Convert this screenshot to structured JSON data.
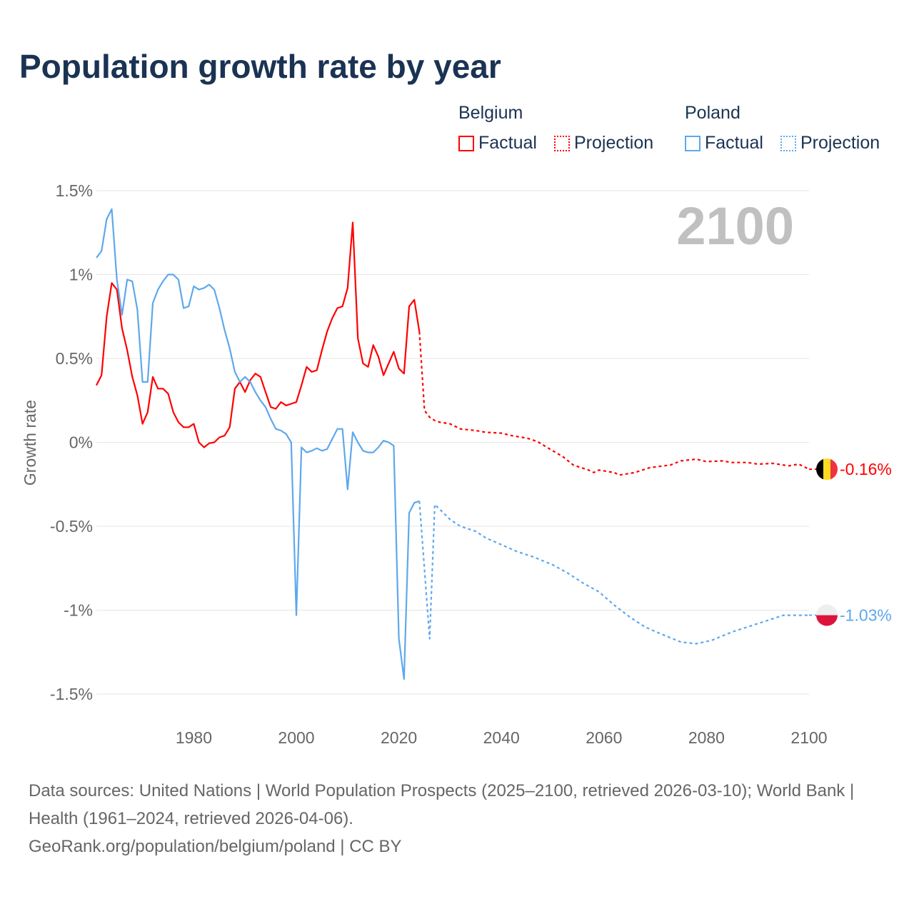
{
  "chart_data": {
    "type": "line",
    "title": "Population growth rate by year",
    "ylabel": "Growth rate",
    "xlabel": "",
    "xlim": [
      1961,
      2100
    ],
    "ylim": [
      -1.5,
      1.5
    ],
    "x_ticks": [
      "1980",
      "2000",
      "2020",
      "2040",
      "2060",
      "2080",
      "2100"
    ],
    "y_ticks": [
      "1.5%",
      "1%",
      "0.5%",
      "0%",
      "-0.5%",
      "-1%",
      "-1.5%"
    ],
    "year_watermark": "2100",
    "legend": {
      "groups": [
        {
          "name": "Belgium",
          "items": [
            "Factual",
            "Projection"
          ],
          "color": "#ff0000"
        },
        {
          "name": "Poland",
          "items": [
            "Factual",
            "Projection"
          ],
          "color": "#5ea8ec"
        }
      ]
    },
    "series": [
      {
        "name": "Belgium Factual",
        "color": "#ff0000",
        "style": "solid",
        "x": [
          1961,
          1962,
          1963,
          1964,
          1965,
          1966,
          1967,
          1968,
          1969,
          1970,
          1971,
          1972,
          1973,
          1974,
          1975,
          1976,
          1977,
          1978,
          1979,
          1980,
          1981,
          1982,
          1983,
          1984,
          1985,
          1986,
          1987,
          1988,
          1989,
          1990,
          1991,
          1992,
          1993,
          1994,
          1995,
          1996,
          1997,
          1998,
          1999,
          2000,
          2001,
          2002,
          2003,
          2004,
          2005,
          2006,
          2007,
          2008,
          2009,
          2010,
          2011,
          2012,
          2013,
          2014,
          2015,
          2016,
          2017,
          2018,
          2019,
          2020,
          2021,
          2022,
          2023,
          2024
        ],
        "y": [
          0.34,
          0.4,
          0.75,
          0.95,
          0.91,
          0.68,
          0.55,
          0.39,
          0.28,
          0.11,
          0.18,
          0.39,
          0.32,
          0.32,
          0.29,
          0.18,
          0.12,
          0.09,
          0.09,
          0.11,
          0.0,
          -0.03,
          -0.005,
          0.0,
          0.03,
          0.04,
          0.09,
          0.32,
          0.36,
          0.3,
          0.37,
          0.41,
          0.39,
          0.3,
          0.21,
          0.2,
          0.24,
          0.22,
          0.23,
          0.24,
          0.34,
          0.45,
          0.42,
          0.43,
          0.55,
          0.66,
          0.74,
          0.8,
          0.81,
          0.92,
          1.31,
          0.62,
          0.47,
          0.45,
          0.58,
          0.51,
          0.4,
          0.47,
          0.54,
          0.44,
          0.41,
          0.81,
          0.85,
          0.66
        ]
      },
      {
        "name": "Belgium Projection",
        "color": "#ff0000",
        "style": "dotted",
        "x": [
          2024,
          2025,
          2026,
          2027,
          2028,
          2030,
          2032,
          2035,
          2037,
          2040,
          2042,
          2045,
          2047,
          2050,
          2052,
          2054,
          2057,
          2058,
          2059,
          2062,
          2063,
          2066,
          2069,
          2073,
          2075,
          2078,
          2080,
          2083,
          2085,
          2088,
          2090,
          2093,
          2096,
          2098,
          2100
        ],
        "y": [
          0.66,
          0.19,
          0.15,
          0.13,
          0.12,
          0.11,
          0.08,
          0.07,
          0.06,
          0.055,
          0.04,
          0.025,
          0.005,
          -0.05,
          -0.085,
          -0.135,
          -0.165,
          -0.18,
          -0.165,
          -0.18,
          -0.195,
          -0.18,
          -0.15,
          -0.135,
          -0.11,
          -0.1,
          -0.115,
          -0.11,
          -0.12,
          -0.12,
          -0.13,
          -0.125,
          -0.14,
          -0.13,
          -0.16
        ]
      },
      {
        "name": "Poland Factual",
        "color": "#5ea8ec",
        "style": "solid",
        "x": [
          1961,
          1962,
          1963,
          1964,
          1965,
          1966,
          1967,
          1968,
          1969,
          1970,
          1971,
          1972,
          1973,
          1974,
          1975,
          1976,
          1977,
          1978,
          1979,
          1980,
          1981,
          1982,
          1983,
          1984,
          1985,
          1986,
          1987,
          1988,
          1989,
          1990,
          1991,
          1992,
          1993,
          1994,
          1995,
          1996,
          1997,
          1998,
          1999,
          2000,
          2001,
          2002,
          2003,
          2004,
          2005,
          2006,
          2007,
          2008,
          2009,
          2010,
          2011,
          2012,
          2013,
          2014,
          2015,
          2016,
          2017,
          2018,
          2019,
          2020,
          2021,
          2022,
          2023,
          2024
        ],
        "y": [
          1.1,
          1.14,
          1.33,
          1.39,
          0.97,
          0.76,
          0.97,
          0.96,
          0.79,
          0.36,
          0.36,
          0.83,
          0.91,
          0.96,
          1.0,
          1.0,
          0.97,
          0.8,
          0.81,
          0.93,
          0.91,
          0.92,
          0.94,
          0.91,
          0.8,
          0.67,
          0.56,
          0.42,
          0.36,
          0.39,
          0.36,
          0.3,
          0.25,
          0.21,
          0.14,
          0.08,
          0.07,
          0.05,
          0.0,
          -1.03,
          -0.03,
          -0.06,
          -0.05,
          -0.035,
          -0.05,
          -0.04,
          0.02,
          0.08,
          0.08,
          -0.28,
          0.06,
          0.0,
          -0.05,
          -0.06,
          -0.06,
          -0.03,
          0.01,
          0.0,
          -0.02,
          -1.17,
          -1.41,
          -0.42,
          -0.36,
          -0.35
        ]
      },
      {
        "name": "Poland Projection",
        "color": "#5ea8ec",
        "style": "dotted",
        "x": [
          2024,
          2025,
          2026,
          2027,
          2028,
          2030,
          2032,
          2035,
          2037,
          2040,
          2043,
          2046,
          2050,
          2053,
          2056,
          2059,
          2062,
          2065,
          2068,
          2071,
          2075,
          2078,
          2081,
          2085,
          2088,
          2091,
          2095,
          2100
        ],
        "y": [
          -0.35,
          -0.76,
          -1.17,
          -0.37,
          -0.4,
          -0.46,
          -0.5,
          -0.53,
          -0.57,
          -0.61,
          -0.65,
          -0.68,
          -0.73,
          -0.78,
          -0.84,
          -0.89,
          -0.97,
          -1.04,
          -1.1,
          -1.14,
          -1.19,
          -1.2,
          -1.18,
          -1.13,
          -1.1,
          -1.07,
          -1.03,
          -1.03
        ]
      }
    ],
    "end_labels": [
      {
        "country": "Belgium",
        "value": -0.16,
        "label": "-0.16%",
        "color": "#ff0000"
      },
      {
        "country": "Poland",
        "value": -1.03,
        "label": "-1.03%",
        "color": "#5ea8ec"
      }
    ]
  },
  "footer": {
    "sources": "Data sources: United Nations | World Population Prospects (2025–2100, retrieved 2026-03-10); World Bank | Health (1961–2024, retrieved 2026-04-06).",
    "link": "GeoRank.org/population/belgium/poland | CC BY"
  }
}
